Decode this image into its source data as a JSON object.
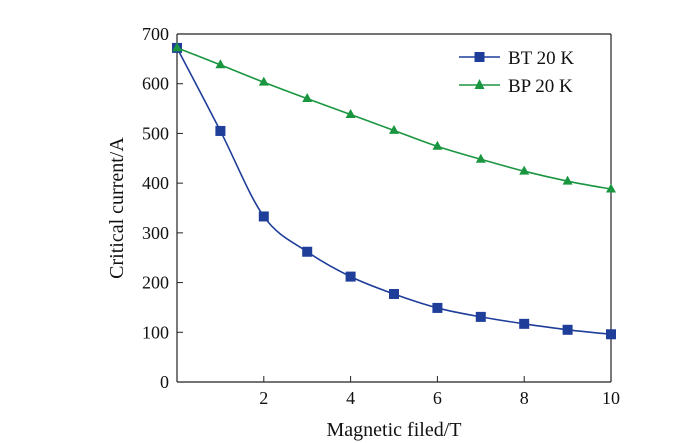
{
  "chart_data": {
    "type": "line",
    "title": "",
    "xlabel": "Magnetic filed/T",
    "ylabel": "Critical current/A",
    "xlim": [
      0,
      10
    ],
    "ylim": [
      0,
      700
    ],
    "x_ticks": [
      2,
      4,
      6,
      8,
      10
    ],
    "y_ticks": [
      0,
      100,
      200,
      300,
      400,
      500,
      600,
      700
    ],
    "grid": false,
    "legend_position": "top-right",
    "series": [
      {
        "name": "BT 20 K",
        "color": "#1f3e9a",
        "marker": "square",
        "x": [
          0,
          1,
          2,
          3,
          4,
          5,
          6,
          7,
          8,
          9,
          10
        ],
        "y": [
          672,
          505,
          333,
          262,
          212,
          177,
          149,
          131,
          117,
          105,
          96
        ]
      },
      {
        "name": "BP 20 K",
        "color": "#1a9641",
        "marker": "triangle",
        "x": [
          0,
          1,
          2,
          3,
          4,
          5,
          6,
          7,
          8,
          9,
          10
        ],
        "y": [
          672,
          638,
          603,
          570,
          538,
          506,
          474,
          448,
          424,
          404,
          388
        ]
      }
    ]
  }
}
